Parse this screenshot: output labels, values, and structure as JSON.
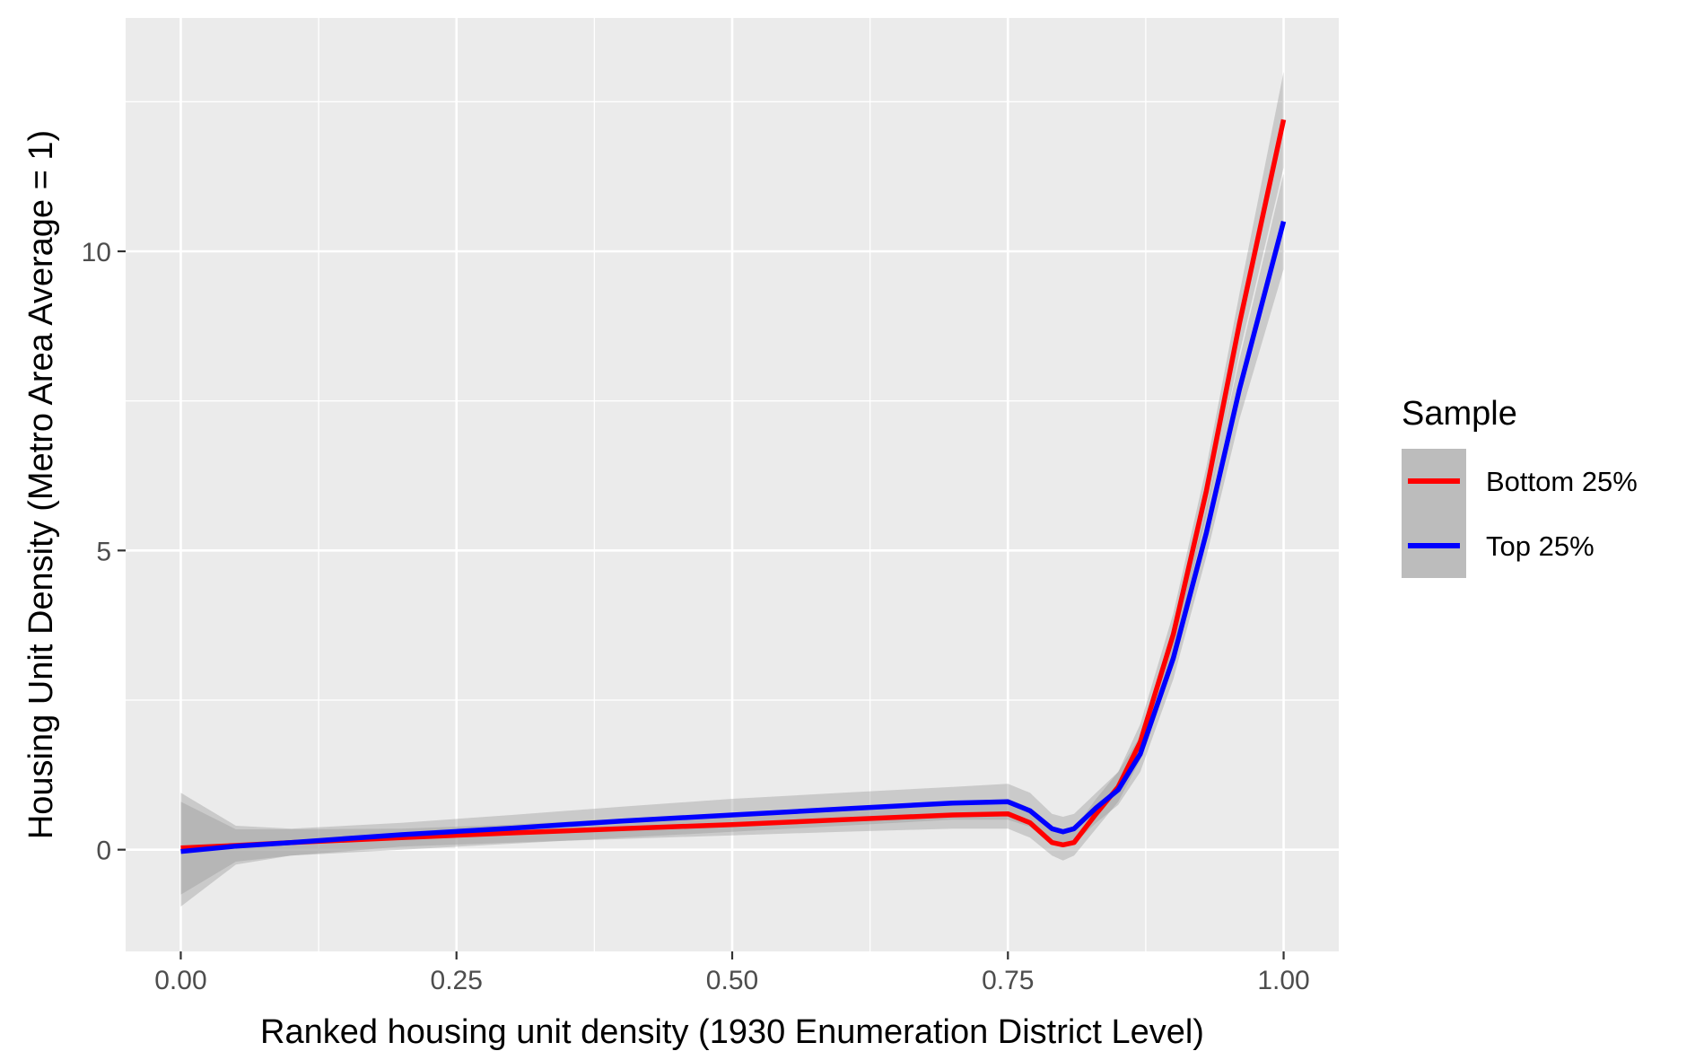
{
  "chart_data": {
    "type": "line",
    "xlabel": "Ranked housing unit density (1930 Enumeration District Level)",
    "ylabel": "Housing Unit Density (Metro Area Average = 1)",
    "xlim": [
      -0.05,
      1.05
    ],
    "ylim": [
      -1.7,
      13.9
    ],
    "x_ticks": [
      0,
      0.25,
      0.5,
      0.75,
      1
    ],
    "x_tick_labels": [
      "0.00",
      "0.25",
      "0.50",
      "0.75",
      "1.00"
    ],
    "y_ticks": [
      0,
      5,
      10
    ],
    "y_tick_labels": [
      "0",
      "5",
      "10"
    ],
    "grid": true,
    "legend": {
      "title": "Sample",
      "position": "right"
    },
    "series": [
      {
        "name": "Bottom 25%",
        "color": "#ff0000",
        "x": [
          0,
          0.05,
          0.1,
          0.2,
          0.3,
          0.4,
          0.5,
          0.6,
          0.7,
          0.75,
          0.77,
          0.79,
          0.8,
          0.81,
          0.83,
          0.85,
          0.87,
          0.9,
          0.93,
          0.96,
          1.0
        ],
        "y": [
          0.03,
          0.07,
          0.12,
          0.2,
          0.28,
          0.35,
          0.42,
          0.5,
          0.58,
          0.6,
          0.45,
          0.12,
          0.08,
          0.12,
          0.6,
          1.05,
          1.8,
          3.6,
          6.0,
          8.8,
          12.2
        ],
        "lower": [
          -0.75,
          -0.2,
          -0.1,
          0.05,
          0.12,
          0.18,
          0.24,
          0.3,
          0.35,
          0.35,
          0.2,
          -0.1,
          -0.18,
          -0.1,
          0.35,
          0.8,
          1.5,
          3.25,
          5.6,
          8.3,
          11.4
        ],
        "upper": [
          0.8,
          0.34,
          0.34,
          0.35,
          0.42,
          0.52,
          0.6,
          0.7,
          0.8,
          0.85,
          0.7,
          0.36,
          0.3,
          0.34,
          0.85,
          1.3,
          2.1,
          3.95,
          6.4,
          9.3,
          13.0
        ]
      },
      {
        "name": "Top 25%",
        "color": "#0000ff",
        "x": [
          0,
          0.05,
          0.1,
          0.2,
          0.3,
          0.4,
          0.5,
          0.6,
          0.7,
          0.75,
          0.77,
          0.79,
          0.8,
          0.81,
          0.83,
          0.85,
          0.87,
          0.9,
          0.93,
          0.96,
          1.0
        ],
        "y": [
          -0.03,
          0.06,
          0.12,
          0.25,
          0.36,
          0.48,
          0.58,
          0.68,
          0.78,
          0.8,
          0.65,
          0.35,
          0.3,
          0.35,
          0.7,
          1.0,
          1.6,
          3.2,
          5.3,
          7.7,
          10.5
        ],
        "lower": [
          -0.95,
          -0.25,
          -0.1,
          0.0,
          0.1,
          0.2,
          0.3,
          0.4,
          0.5,
          0.5,
          0.38,
          0.1,
          0.05,
          0.1,
          0.45,
          0.75,
          1.3,
          2.85,
          4.9,
          7.2,
          9.7
        ],
        "upper": [
          0.95,
          0.4,
          0.35,
          0.45,
          0.58,
          0.72,
          0.85,
          0.95,
          1.05,
          1.1,
          0.95,
          0.6,
          0.55,
          0.6,
          0.95,
          1.3,
          1.9,
          3.55,
          5.7,
          8.2,
          11.3
        ]
      }
    ]
  },
  "colors": {
    "panel": "#ebebeb",
    "grid_major": "#ffffff",
    "ribbon": "#999999"
  }
}
